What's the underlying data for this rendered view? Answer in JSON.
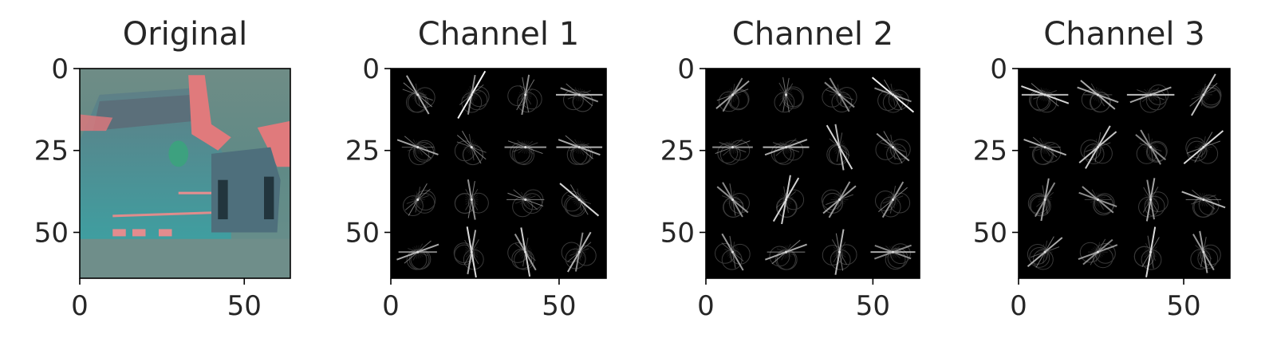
{
  "chart_data": [
    {
      "type": "heatmap",
      "title": "Original",
      "xlabel": "",
      "ylabel": "",
      "xlim": [
        0,
        64
      ],
      "ylim": [
        64,
        0
      ],
      "xticks": [
        "0",
        "50"
      ],
      "yticks": [
        "0",
        "25",
        "50"
      ],
      "image": "car-color-image"
    },
    {
      "type": "heatmap",
      "title": "Channel 1",
      "xlabel": "",
      "ylabel": "",
      "xlim": [
        0,
        64
      ],
      "ylim": [
        64,
        0
      ],
      "xticks": [
        "0",
        "50"
      ],
      "yticks": [
        "0",
        "25",
        "50"
      ],
      "image": "hog-visualization",
      "cells": [
        4,
        4
      ]
    },
    {
      "type": "heatmap",
      "title": "Channel 2",
      "xlabel": "",
      "ylabel": "",
      "xlim": [
        0,
        64
      ],
      "ylim": [
        64,
        0
      ],
      "xticks": [
        "0",
        "50"
      ],
      "yticks": [
        "0",
        "25",
        "50"
      ],
      "image": "hog-visualization",
      "cells": [
        4,
        4
      ]
    },
    {
      "type": "heatmap",
      "title": "Channel 3",
      "xlabel": "",
      "ylabel": "",
      "xlim": [
        0,
        64
      ],
      "ylim": [
        64,
        0
      ],
      "xticks": [
        "0",
        "50"
      ],
      "yticks": [
        "0",
        "25",
        "50"
      ],
      "image": "hog-visualization",
      "cells": [
        4,
        4
      ]
    }
  ]
}
